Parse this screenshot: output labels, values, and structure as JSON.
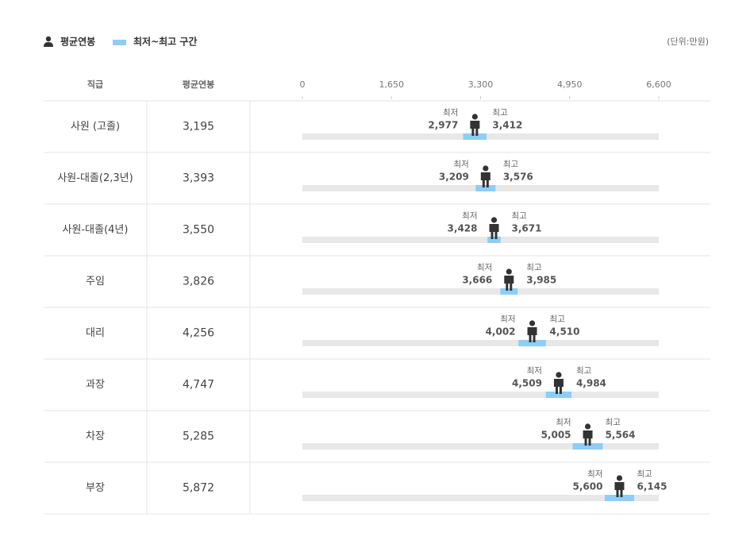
{
  "chart_data": {
    "type": "range",
    "category_header": "직급",
    "range_legend": "최저~최고 구간",
    "unit": "(단위:만원)",
    "categories": [
      "사원 (고졸)",
      "사원-대졸(2,3년)",
      "사원-대졸(4년)",
      "주임",
      "대리",
      "과장",
      "차장",
      "부장"
    ],
    "series": [
      {
        "name": "평균연봉",
        "color": "#333333",
        "values": [
          3195,
          3393,
          3550,
          3826,
          4256,
          4747,
          5285,
          5872
        ],
        "value_labels": [
          "3,195",
          "3,393",
          "3,550",
          "3,826",
          "4,256",
          "4,747",
          "5,285",
          "5,872"
        ]
      },
      {
        "name": "최저",
        "color": "#8ecdf6",
        "values": [
          2977,
          3209,
          3428,
          3666,
          4002,
          4509,
          5005,
          5600
        ],
        "value_labels": [
          "2,977",
          "3,209",
          "3,428",
          "3,666",
          "4,002",
          "4,509",
          "5,005",
          "5,600"
        ]
      },
      {
        "name": "최고",
        "color": "#8ecdf6",
        "values": [
          3412,
          3576,
          3671,
          3985,
          4510,
          4984,
          5564,
          6145
        ],
        "value_labels": [
          "3,412",
          "3,576",
          "3,671",
          "3,985",
          "4,510",
          "4,984",
          "5,564",
          "6,145"
        ]
      }
    ],
    "track_color": "#e8e8e8",
    "xlim": [
      0,
      6600
    ],
    "xticks": [
      0,
      {
        "value": 1650,
        "label": "1,650"
      },
      {
        "value": 3300,
        "label": "3,300"
      },
      {
        "value": 4950,
        "label": "4,950"
      },
      {
        "value": 6600,
        "label": "6,600"
      }
    ]
  }
}
